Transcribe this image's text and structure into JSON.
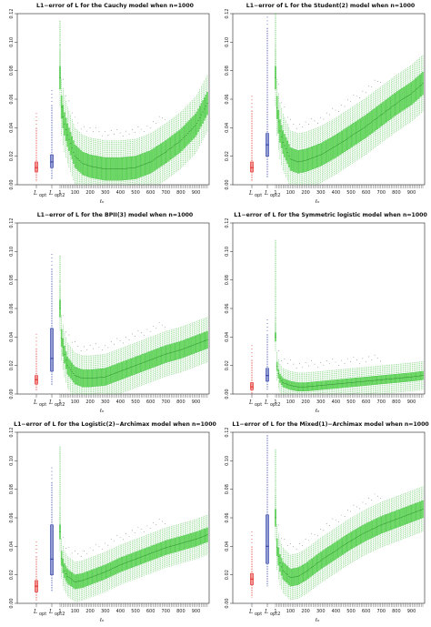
{
  "chart_data": [
    {
      "type": "boxplot",
      "title": "L1−error of L for the Cauchy model when n=1000",
      "xlabel": "ℓₙ",
      "ylim": [
        0,
        0.12
      ],
      "yticks": [
        "0.00",
        "0.02",
        "0.04",
        "0.06",
        "0.08",
        "0.10",
        "0.12"
      ],
      "xticks": [
        "1",
        "100",
        "200",
        "300",
        "400",
        "500",
        "600",
        "700",
        "800",
        "900"
      ],
      "ref_labels": [
        "L_opt",
        "L_opt2"
      ],
      "ref_boxes": [
        {
          "color": "#e53935",
          "q1": 0.009,
          "med": 0.012,
          "q3": 0.016,
          "lo": 0.002,
          "hi": 0.04
        },
        {
          "color": "#3949ab",
          "q1": 0.012,
          "med": 0.016,
          "q3": 0.021,
          "lo": 0.004,
          "hi": 0.056
        }
      ],
      "curve": {
        "x": [
          1,
          10,
          25,
          50,
          100,
          150,
          200,
          300,
          400,
          500,
          600,
          700,
          800,
          900,
          975
        ],
        "median": [
          0.075,
          0.055,
          0.045,
          0.035,
          0.02,
          0.015,
          0.013,
          0.011,
          0.011,
          0.012,
          0.016,
          0.023,
          0.031,
          0.042,
          0.057
        ],
        "q1_offset": 0.008,
        "q3_offset": 0.008,
        "whisker_offset": 0.02
      },
      "outlier_top": 0.115
    },
    {
      "type": "boxplot",
      "title": "L1−error of L for the Student(2) model when n=1000",
      "xlabel": "ℓₙ",
      "ylim": [
        0,
        0.12
      ],
      "yticks": [
        "0.00",
        "0.02",
        "0.04",
        "0.06",
        "0.08",
        "0.10",
        "0.12"
      ],
      "xticks": [
        "1",
        "100",
        "200",
        "300",
        "400",
        "500",
        "600",
        "700",
        "800",
        "900"
      ],
      "ref_labels": [
        "L_opt",
        "L_opt2"
      ],
      "ref_boxes": [
        {
          "color": "#e53935",
          "q1": 0.009,
          "med": 0.012,
          "q3": 0.016,
          "lo": 0.002,
          "hi": 0.052
        },
        {
          "color": "#3949ab",
          "q1": 0.02,
          "med": 0.028,
          "q3": 0.036,
          "lo": 0.005,
          "hi": 0.11
        }
      ],
      "curve": {
        "x": [
          1,
          10,
          25,
          50,
          100,
          150,
          200,
          300,
          400,
          500,
          600,
          700,
          800,
          900,
          975
        ],
        "median": [
          0.075,
          0.055,
          0.04,
          0.03,
          0.018,
          0.016,
          0.017,
          0.021,
          0.027,
          0.034,
          0.041,
          0.049,
          0.057,
          0.064,
          0.071
        ],
        "q1_offset": 0.008,
        "q3_offset": 0.008,
        "whisker_offset": 0.02
      },
      "outlier_top": 0.125
    },
    {
      "type": "boxplot",
      "title": "L1−error of L for the BPII(3) model when n=1000",
      "xlabel": "ℓₙ",
      "ylim": [
        0,
        0.12
      ],
      "yticks": [
        "0.00",
        "0.02",
        "0.04",
        "0.06",
        "0.08",
        "0.10",
        "0.12"
      ],
      "xticks": [
        "1",
        "100",
        "200",
        "300",
        "400",
        "500",
        "600",
        "700",
        "800",
        "900"
      ],
      "ref_labels": [
        "L_opt",
        "L_opt2"
      ],
      "ref_boxes": [
        {
          "color": "#e53935",
          "q1": 0.007,
          "med": 0.01,
          "q3": 0.013,
          "lo": 0.002,
          "hi": 0.032
        },
        {
          "color": "#3949ab",
          "q1": 0.016,
          "med": 0.025,
          "q3": 0.046,
          "lo": 0.006,
          "hi": 0.088
        }
      ],
      "curve": {
        "x": [
          1,
          10,
          25,
          50,
          100,
          150,
          200,
          300,
          400,
          500,
          600,
          700,
          800,
          900,
          975
        ],
        "median": [
          0.06,
          0.04,
          0.03,
          0.02,
          0.013,
          0.011,
          0.011,
          0.012,
          0.016,
          0.02,
          0.024,
          0.028,
          0.031,
          0.035,
          0.038
        ],
        "q1_offset": 0.006,
        "q3_offset": 0.006,
        "whisker_offset": 0.016
      },
      "outlier_top": 0.097
    },
    {
      "type": "boxplot",
      "title": "L1−error of L for the Symmetric logistic model when n=1000",
      "xlabel": "ℓₙ",
      "ylim": [
        0,
        0.12
      ],
      "yticks": [
        "0.00",
        "0.02",
        "0.04",
        "0.06",
        "0.08",
        "0.10",
        "0.12"
      ],
      "xticks": [
        "1",
        "100",
        "200",
        "300",
        "400",
        "500",
        "600",
        "700",
        "800",
        "900"
      ],
      "ref_labels": [
        "L_opt",
        "L_opt2"
      ],
      "ref_boxes": [
        {
          "color": "#e53935",
          "q1": 0.003,
          "med": 0.005,
          "q3": 0.008,
          "lo": 0.0,
          "hi": 0.024
        },
        {
          "color": "#3949ab",
          "q1": 0.009,
          "med": 0.013,
          "q3": 0.018,
          "lo": 0.003,
          "hi": 0.042
        }
      ],
      "curve": {
        "x": [
          1,
          10,
          25,
          50,
          100,
          150,
          200,
          300,
          400,
          500,
          600,
          700,
          800,
          900,
          975
        ],
        "median": [
          0.04,
          0.02,
          0.012,
          0.008,
          0.006,
          0.005,
          0.005,
          0.006,
          0.007,
          0.008,
          0.009,
          0.01,
          0.011,
          0.012,
          0.013
        ],
        "q1_offset": 0.003,
        "q3_offset": 0.003,
        "whisker_offset": 0.01
      },
      "outlier_top": 0.108
    },
    {
      "type": "boxplot",
      "title": "L1−error of L for the Logistic(2)−Archimax model when n=1000",
      "xlabel": "ℓₙ",
      "ylim": [
        0,
        0.12
      ],
      "yticks": [
        "0.00",
        "0.02",
        "0.04",
        "0.06",
        "0.08",
        "0.10",
        "0.12"
      ],
      "xticks": [
        "1",
        "100",
        "200",
        "300",
        "400",
        "500",
        "600",
        "700",
        "800",
        "900"
      ],
      "ref_labels": [
        "L_opt",
        "L_opt2"
      ],
      "ref_boxes": [
        {
          "color": "#e53935",
          "q1": 0.008,
          "med": 0.012,
          "q3": 0.016,
          "lo": 0.002,
          "hi": 0.033
        },
        {
          "color": "#3949ab",
          "q1": 0.02,
          "med": 0.031,
          "q3": 0.055,
          "lo": 0.008,
          "hi": 0.085
        }
      ],
      "curve": {
        "x": [
          1,
          10,
          25,
          50,
          100,
          150,
          200,
          300,
          400,
          500,
          600,
          700,
          800,
          900,
          975
        ],
        "median": [
          0.05,
          0.032,
          0.024,
          0.019,
          0.015,
          0.016,
          0.018,
          0.022,
          0.027,
          0.031,
          0.035,
          0.039,
          0.042,
          0.045,
          0.048
        ],
        "q1_offset": 0.005,
        "q3_offset": 0.005,
        "whisker_offset": 0.014
      },
      "outlier_top": 0.11
    },
    {
      "type": "boxplot",
      "title": "L1−error of L for the Mixed(1)−Archimax model when n=1000",
      "xlabel": "ℓₙ",
      "ylim": [
        0,
        0.12
      ],
      "yticks": [
        "0.00",
        "0.02",
        "0.04",
        "0.06",
        "0.08",
        "0.10",
        "0.12"
      ],
      "xticks": [
        "1",
        "100",
        "200",
        "300",
        "400",
        "500",
        "600",
        "700",
        "800",
        "900"
      ],
      "ref_labels": [
        "L_opt",
        "L_opt2"
      ],
      "ref_boxes": [
        {
          "color": "#e53935",
          "q1": 0.013,
          "med": 0.017,
          "q3": 0.021,
          "lo": 0.004,
          "hi": 0.04
        },
        {
          "color": "#3949ab",
          "q1": 0.028,
          "med": 0.04,
          "q3": 0.062,
          "lo": 0.012,
          "hi": 0.118
        }
      ],
      "curve": {
        "x": [
          1,
          10,
          25,
          50,
          100,
          150,
          200,
          300,
          400,
          500,
          600,
          700,
          800,
          900,
          975
        ],
        "median": [
          0.06,
          0.04,
          0.03,
          0.023,
          0.018,
          0.019,
          0.022,
          0.03,
          0.037,
          0.044,
          0.05,
          0.055,
          0.059,
          0.063,
          0.066
        ],
        "q1_offset": 0.006,
        "q3_offset": 0.006,
        "whisker_offset": 0.016
      },
      "outlier_top": 0.108
    }
  ]
}
